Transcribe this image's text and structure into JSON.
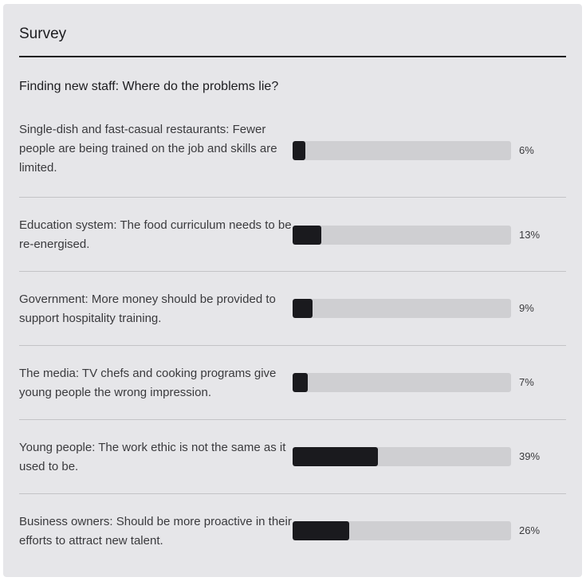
{
  "survey": {
    "title": "Survey",
    "question": "Finding new staff: Where do the problems lie?",
    "items": [
      {
        "label": "Single-dish and fast-casual restaurants: Fewer people are being trained on the job and skills are limited.",
        "percent": 6,
        "percent_label": "6%"
      },
      {
        "label": "Education system: The food curriculum needs to be re-energised.",
        "percent": 13,
        "percent_label": "13%"
      },
      {
        "label": "Government: More money should be provided to support hospitality training.",
        "percent": 9,
        "percent_label": "9%"
      },
      {
        "label": "The media: TV chefs and cooking programs give young people the wrong impression.",
        "percent": 7,
        "percent_label": "7%"
      },
      {
        "label": "Young people: The work ethic is not the same as it used to be.",
        "percent": 39,
        "percent_label": "39%"
      },
      {
        "label": "Business owners: Should be more proactive in their efforts to attract new talent.",
        "percent": 26,
        "percent_label": "26%"
      }
    ]
  },
  "colors": {
    "card_background": "#e6e6e9",
    "bar_track": "#cfcfd2",
    "bar_fill": "#1a1a1e",
    "text": "#1c1c1f"
  }
}
